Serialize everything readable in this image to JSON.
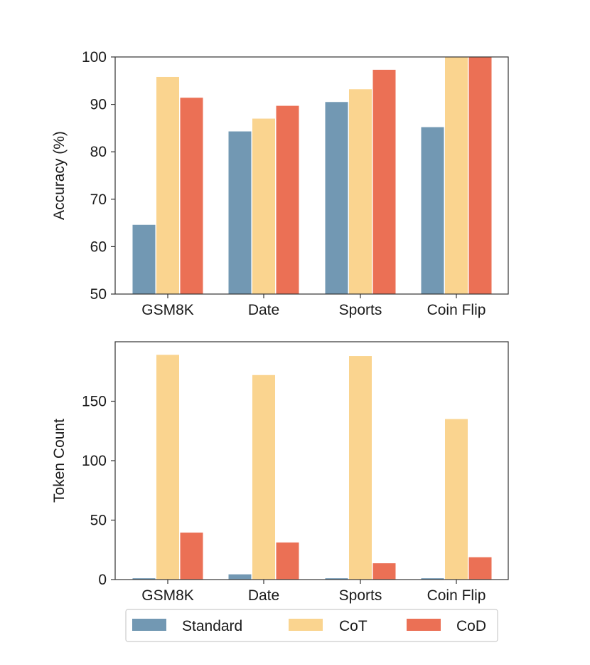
{
  "chart_data": [
    {
      "type": "bar",
      "categories": [
        "GSM8K",
        "Date",
        "Sports",
        "Coin Flip"
      ],
      "ylabel": "Accuracy (%)",
      "xlabel": "",
      "ylim": [
        50,
        100
      ],
      "yticks": [
        50,
        60,
        70,
        80,
        90,
        100
      ],
      "grid": false,
      "series": [
        {
          "name": "Standard",
          "values": [
            64.6,
            84.3,
            90.5,
            85.2
          ]
        },
        {
          "name": "CoT",
          "values": [
            95.8,
            87.0,
            93.2,
            100
          ]
        },
        {
          "name": "CoD",
          "values": [
            91.4,
            89.7,
            97.3,
            100
          ]
        }
      ]
    },
    {
      "type": "bar",
      "categories": [
        "GSM8K",
        "Date",
        "Sports",
        "Coin Flip"
      ],
      "ylabel": "Token Count",
      "xlabel": "",
      "ylim": [
        0,
        200
      ],
      "yticks": [
        0,
        50,
        100,
        150
      ],
      "grid": false,
      "series": [
        {
          "name": "Standard",
          "values": [
            1.1,
            4.4,
            1.1,
            1.1
          ]
        },
        {
          "name": "CoT",
          "values": [
            189,
            172,
            188,
            135
          ]
        },
        {
          "name": "CoD",
          "values": [
            39.5,
            31.2,
            13.7,
            18.8
          ]
        }
      ]
    }
  ],
  "legend": {
    "placement": "bottom",
    "entries": [
      {
        "label": "Standard",
        "color": "#7298b3"
      },
      {
        "label": "CoT",
        "color": "#fad48f"
      },
      {
        "label": "CoD",
        "color": "#eb7055"
      }
    ]
  },
  "colors": {
    "standard": "#7298b3",
    "cot": "#fad48f",
    "cod": "#eb7055",
    "axis": "#333333"
  }
}
